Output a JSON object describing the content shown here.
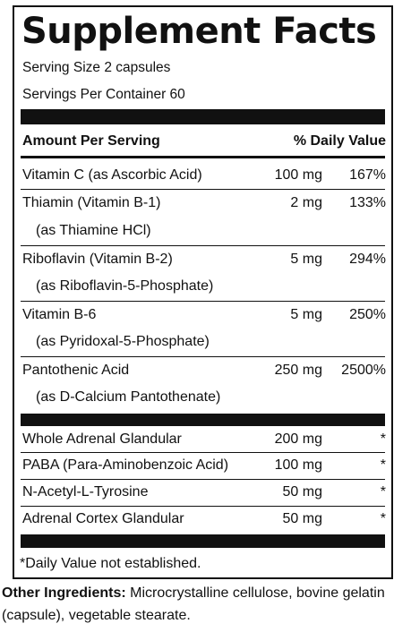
{
  "label": {
    "title": "Supplement Facts",
    "serving_size": "Serving Size 2 capsules",
    "servings_per_container": "Servings Per Container 60",
    "header_amount": "Amount Per Serving",
    "header_dv": "% Daily Value",
    "vitamins": [
      {
        "name": "Vitamin C (as Ascorbic Acid)",
        "sub": "",
        "amount": "100 mg",
        "dv": "167%"
      },
      {
        "name": "Thiamin (Vitamin B-1)",
        "sub": "(as Thiamine HCl)",
        "amount": "2 mg",
        "dv": "133%"
      },
      {
        "name": "Riboflavin (Vitamin B-2)",
        "sub": "(as Riboflavin-5-Phosphate)",
        "amount": "5 mg",
        "dv": "294%"
      },
      {
        "name": "Vitamin B-6",
        "sub": "(as Pyridoxal-5-Phosphate)",
        "amount": "5 mg",
        "dv": "250%"
      },
      {
        "name": "Pantothenic Acid",
        "sub": "(as D-Calcium Pantothenate)",
        "amount": "250 mg",
        "dv": "2500%"
      }
    ],
    "others": [
      {
        "name": "Whole Adrenal Glandular",
        "amount": "200 mg",
        "dv": "*"
      },
      {
        "name": "PABA (Para-Aminobenzoic Acid)",
        "amount": "100 mg",
        "dv": "*"
      },
      {
        "name": "N-Acetyl-L-Tyrosine",
        "amount": "50 mg",
        "dv": "*"
      },
      {
        "name": "Adrenal Cortex Glandular",
        "amount": "50 mg",
        "dv": "*"
      }
    ],
    "footnote": "*Daily Value not established."
  },
  "other_ingredients": {
    "label": "Other Ingredients:",
    "text": " Microcrystalline cellulose, bovine gelatin (capsule), vegetable stearate."
  }
}
